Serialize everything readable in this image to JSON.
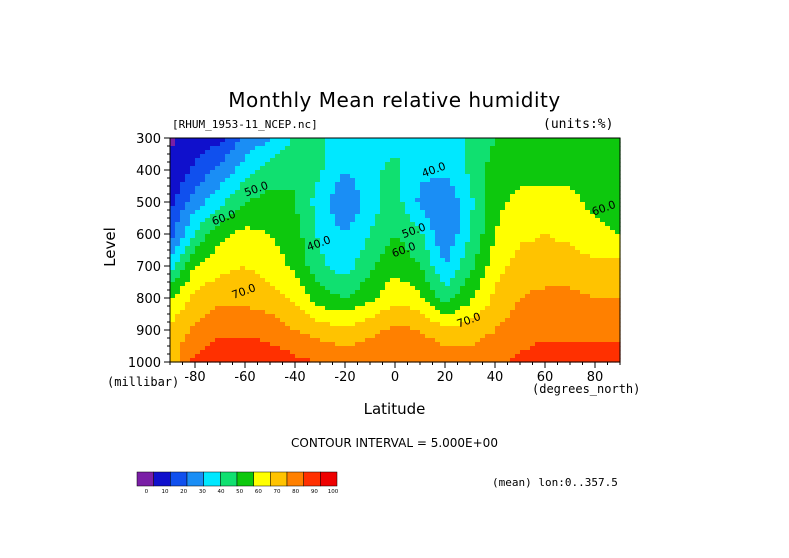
{
  "chart_data": {
    "type": "heatmap",
    "title": "Monthly Mean relative humidity",
    "dataset": "[RHUM_1953-11_NCEP.nc]",
    "units_label": "(units:%)",
    "xlabel": "Latitude",
    "x_units": "(degrees_north)",
    "ylabel": "Level",
    "y_units": "(millibar)",
    "xlim": [
      -90,
      90
    ],
    "ylim": [
      300,
      1000
    ],
    "x_ticks": [
      -80,
      -60,
      -40,
      -20,
      0,
      20,
      40,
      60,
      80
    ],
    "y_ticks": [
      300,
      400,
      500,
      600,
      700,
      800,
      900,
      1000
    ],
    "contour_interval_text": "CONTOUR INTERVAL = 5.000E+00",
    "mean_text": "(mean) lon:0..357.5",
    "colorbar": {
      "levels": [
        0,
        10,
        20,
        30,
        40,
        50,
        60,
        70,
        80,
        90,
        100
      ],
      "colors": [
        "#7a1fa6",
        "#1010cc",
        "#1050ee",
        "#1a8ef5",
        "#00e8ff",
        "#10e070",
        "#0dc80d",
        "#ffff00",
        "#ffc300",
        "#ff8000",
        "#ff3000",
        "#ee0000"
      ]
    },
    "contour_labels": [
      {
        "lat": -55,
        "lev": 470,
        "text": "50.0"
      },
      {
        "lat": -68,
        "lev": 560,
        "text": "60.0"
      },
      {
        "lat": -30,
        "lev": 640,
        "text": "40.0"
      },
      {
        "lat": -60,
        "lev": 790,
        "text": "70.0"
      },
      {
        "lat": 16,
        "lev": 410,
        "text": "40.0"
      },
      {
        "lat": 8,
        "lev": 600,
        "text": "50.0"
      },
      {
        "lat": 4,
        "lev": 660,
        "text": "60.0"
      },
      {
        "lat": 30,
        "lev": 880,
        "text": "70.0"
      },
      {
        "lat": 84,
        "lev": 530,
        "text": "60.0"
      }
    ],
    "grid_latitudes": [
      -90,
      -80,
      -70,
      -60,
      -50,
      -40,
      -30,
      -20,
      -10,
      0,
      10,
      20,
      30,
      40,
      50,
      60,
      70,
      80,
      90
    ],
    "grid_levels": [
      300,
      400,
      500,
      600,
      700,
      800,
      900,
      1000
    ],
    "values": [
      [
        8,
        15,
        18,
        30,
        35,
        45,
        45,
        42,
        40,
        42,
        40,
        40,
        45,
        52,
        55,
        55,
        55,
        55,
        52
      ],
      [
        12,
        22,
        30,
        40,
        48,
        52,
        45,
        36,
        42,
        46,
        38,
        38,
        45,
        56,
        58,
        58,
        58,
        56,
        54
      ],
      [
        18,
        32,
        42,
        52,
        55,
        52,
        40,
        28,
        40,
        48,
        34,
        28,
        42,
        58,
        62,
        62,
        62,
        58,
        56
      ],
      [
        25,
        45,
        58,
        62,
        60,
        56,
        42,
        36,
        44,
        52,
        46,
        28,
        44,
        60,
        66,
        68,
        66,
        62,
        60
      ],
      [
        40,
        60,
        66,
        68,
        64,
        58,
        46,
        40,
        50,
        58,
        52,
        36,
        50,
        64,
        72,
        72,
        72,
        70,
        70
      ],
      [
        60,
        70,
        74,
        74,
        72,
        66,
        56,
        52,
        58,
        66,
        62,
        48,
        58,
        70,
        76,
        78,
        78,
        76,
        76
      ],
      [
        70,
        78,
        82,
        82,
        80,
        76,
        72,
        70,
        74,
        78,
        76,
        70,
        72,
        76,
        80,
        82,
        82,
        82,
        82
      ],
      [
        72,
        86,
        90,
        92,
        90,
        86,
        84,
        82,
        82,
        84,
        84,
        82,
        80,
        82,
        86,
        88,
        88,
        88,
        88
      ]
    ]
  }
}
